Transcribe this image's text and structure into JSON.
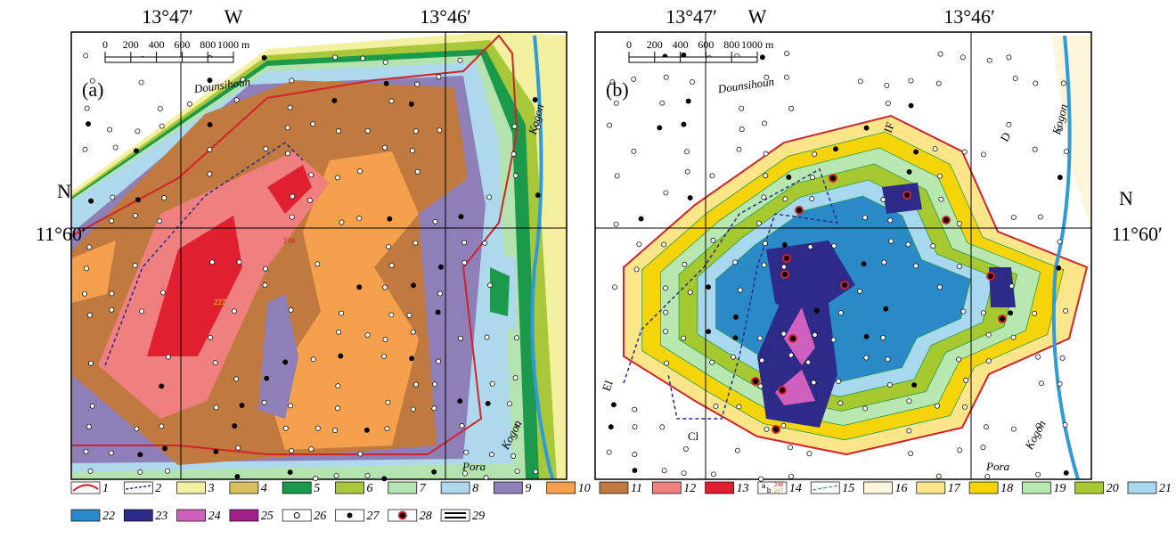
{
  "panels": [
    {
      "label": "(a)",
      "lon_left": "13°47′",
      "lon_mid": "W",
      "lon_right": "13°46′",
      "scale": [
        "0",
        "200",
        "400",
        "600",
        "800",
        "1000 m"
      ],
      "places": [
        "Dounsihoun",
        "Kogon",
        "Pora",
        "Kogon"
      ],
      "marks": [
        "248",
        "227"
      ]
    },
    {
      "label": "(b)",
      "lon_left": "13°47′",
      "lon_mid": "W",
      "lon_right": "13°46′",
      "scale": [
        "0",
        "200",
        "400",
        "600",
        "800",
        "1000 m"
      ],
      "places": [
        "Dounsihoun",
        "Kogon",
        "Pora",
        "Kogon"
      ],
      "marks": [
        "IF",
        "D",
        "El",
        "Cl"
      ]
    }
  ],
  "lat_left": {
    "dir": "N",
    "value": "11°60′"
  },
  "lat_right": {
    "dir": "N",
    "value": "11°60′"
  },
  "legend": [
    "1",
    "2",
    "3",
    "4",
    "5",
    "6",
    "7",
    "8",
    "9",
    "10",
    "11",
    "12",
    "13",
    "14",
    "15",
    "16",
    "17",
    "18",
    "19",
    "20",
    "21",
    "22",
    "23",
    "24",
    "25",
    "26",
    "27",
    "28",
    "29"
  ],
  "legend_14_text": [
    "a",
    "b",
    "248",
    "227"
  ]
}
